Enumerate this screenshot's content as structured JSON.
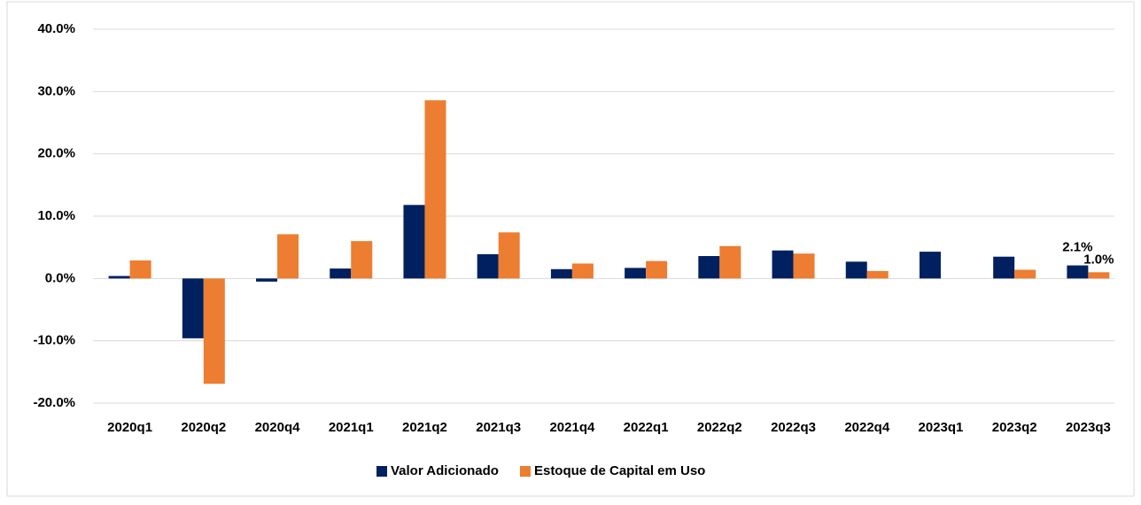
{
  "chart_data": {
    "type": "bar",
    "categories": [
      "2020q1",
      "2020q2",
      "2020q4",
      "2021q1",
      "2021q2",
      "2021q3",
      "2021q4",
      "2022q1",
      "2022q2",
      "2022q3",
      "2022q4",
      "2023q1",
      "2023q2",
      "2023q3"
    ],
    "series": [
      {
        "name": "Valor Adicionado",
        "color": "#002060",
        "values": [
          0.4,
          -9.6,
          -0.5,
          1.6,
          11.8,
          3.9,
          1.5,
          1.7,
          3.6,
          4.5,
          2.7,
          4.3,
          3.5,
          2.1
        ],
        "value_labels": [
          null,
          null,
          null,
          null,
          null,
          null,
          null,
          null,
          null,
          null,
          null,
          null,
          null,
          "2.1%"
        ]
      },
      {
        "name": "Estoque de Capital em Uso",
        "color": "#ED7D31",
        "values": [
          2.9,
          -16.9,
          7.1,
          6.0,
          28.6,
          7.4,
          2.4,
          2.8,
          5.2,
          4.0,
          1.2,
          null,
          1.4,
          1.0
        ],
        "value_labels": [
          null,
          null,
          null,
          null,
          null,
          null,
          null,
          null,
          null,
          null,
          null,
          null,
          null,
          "1.0%"
        ]
      }
    ],
    "ylim": [
      -20,
      40
    ],
    "yticks": [
      {
        "value": -20,
        "label": "-20.0%"
      },
      {
        "value": -10,
        "label": "-10.0%"
      },
      {
        "value": 0,
        "label": "0.0%"
      },
      {
        "value": 10,
        "label": "10.0%"
      },
      {
        "value": 20,
        "label": "20.0%"
      },
      {
        "value": 30,
        "label": "30.0%"
      },
      {
        "value": 40,
        "label": "40.0%"
      }
    ],
    "grid": true,
    "legend": "bottom"
  }
}
